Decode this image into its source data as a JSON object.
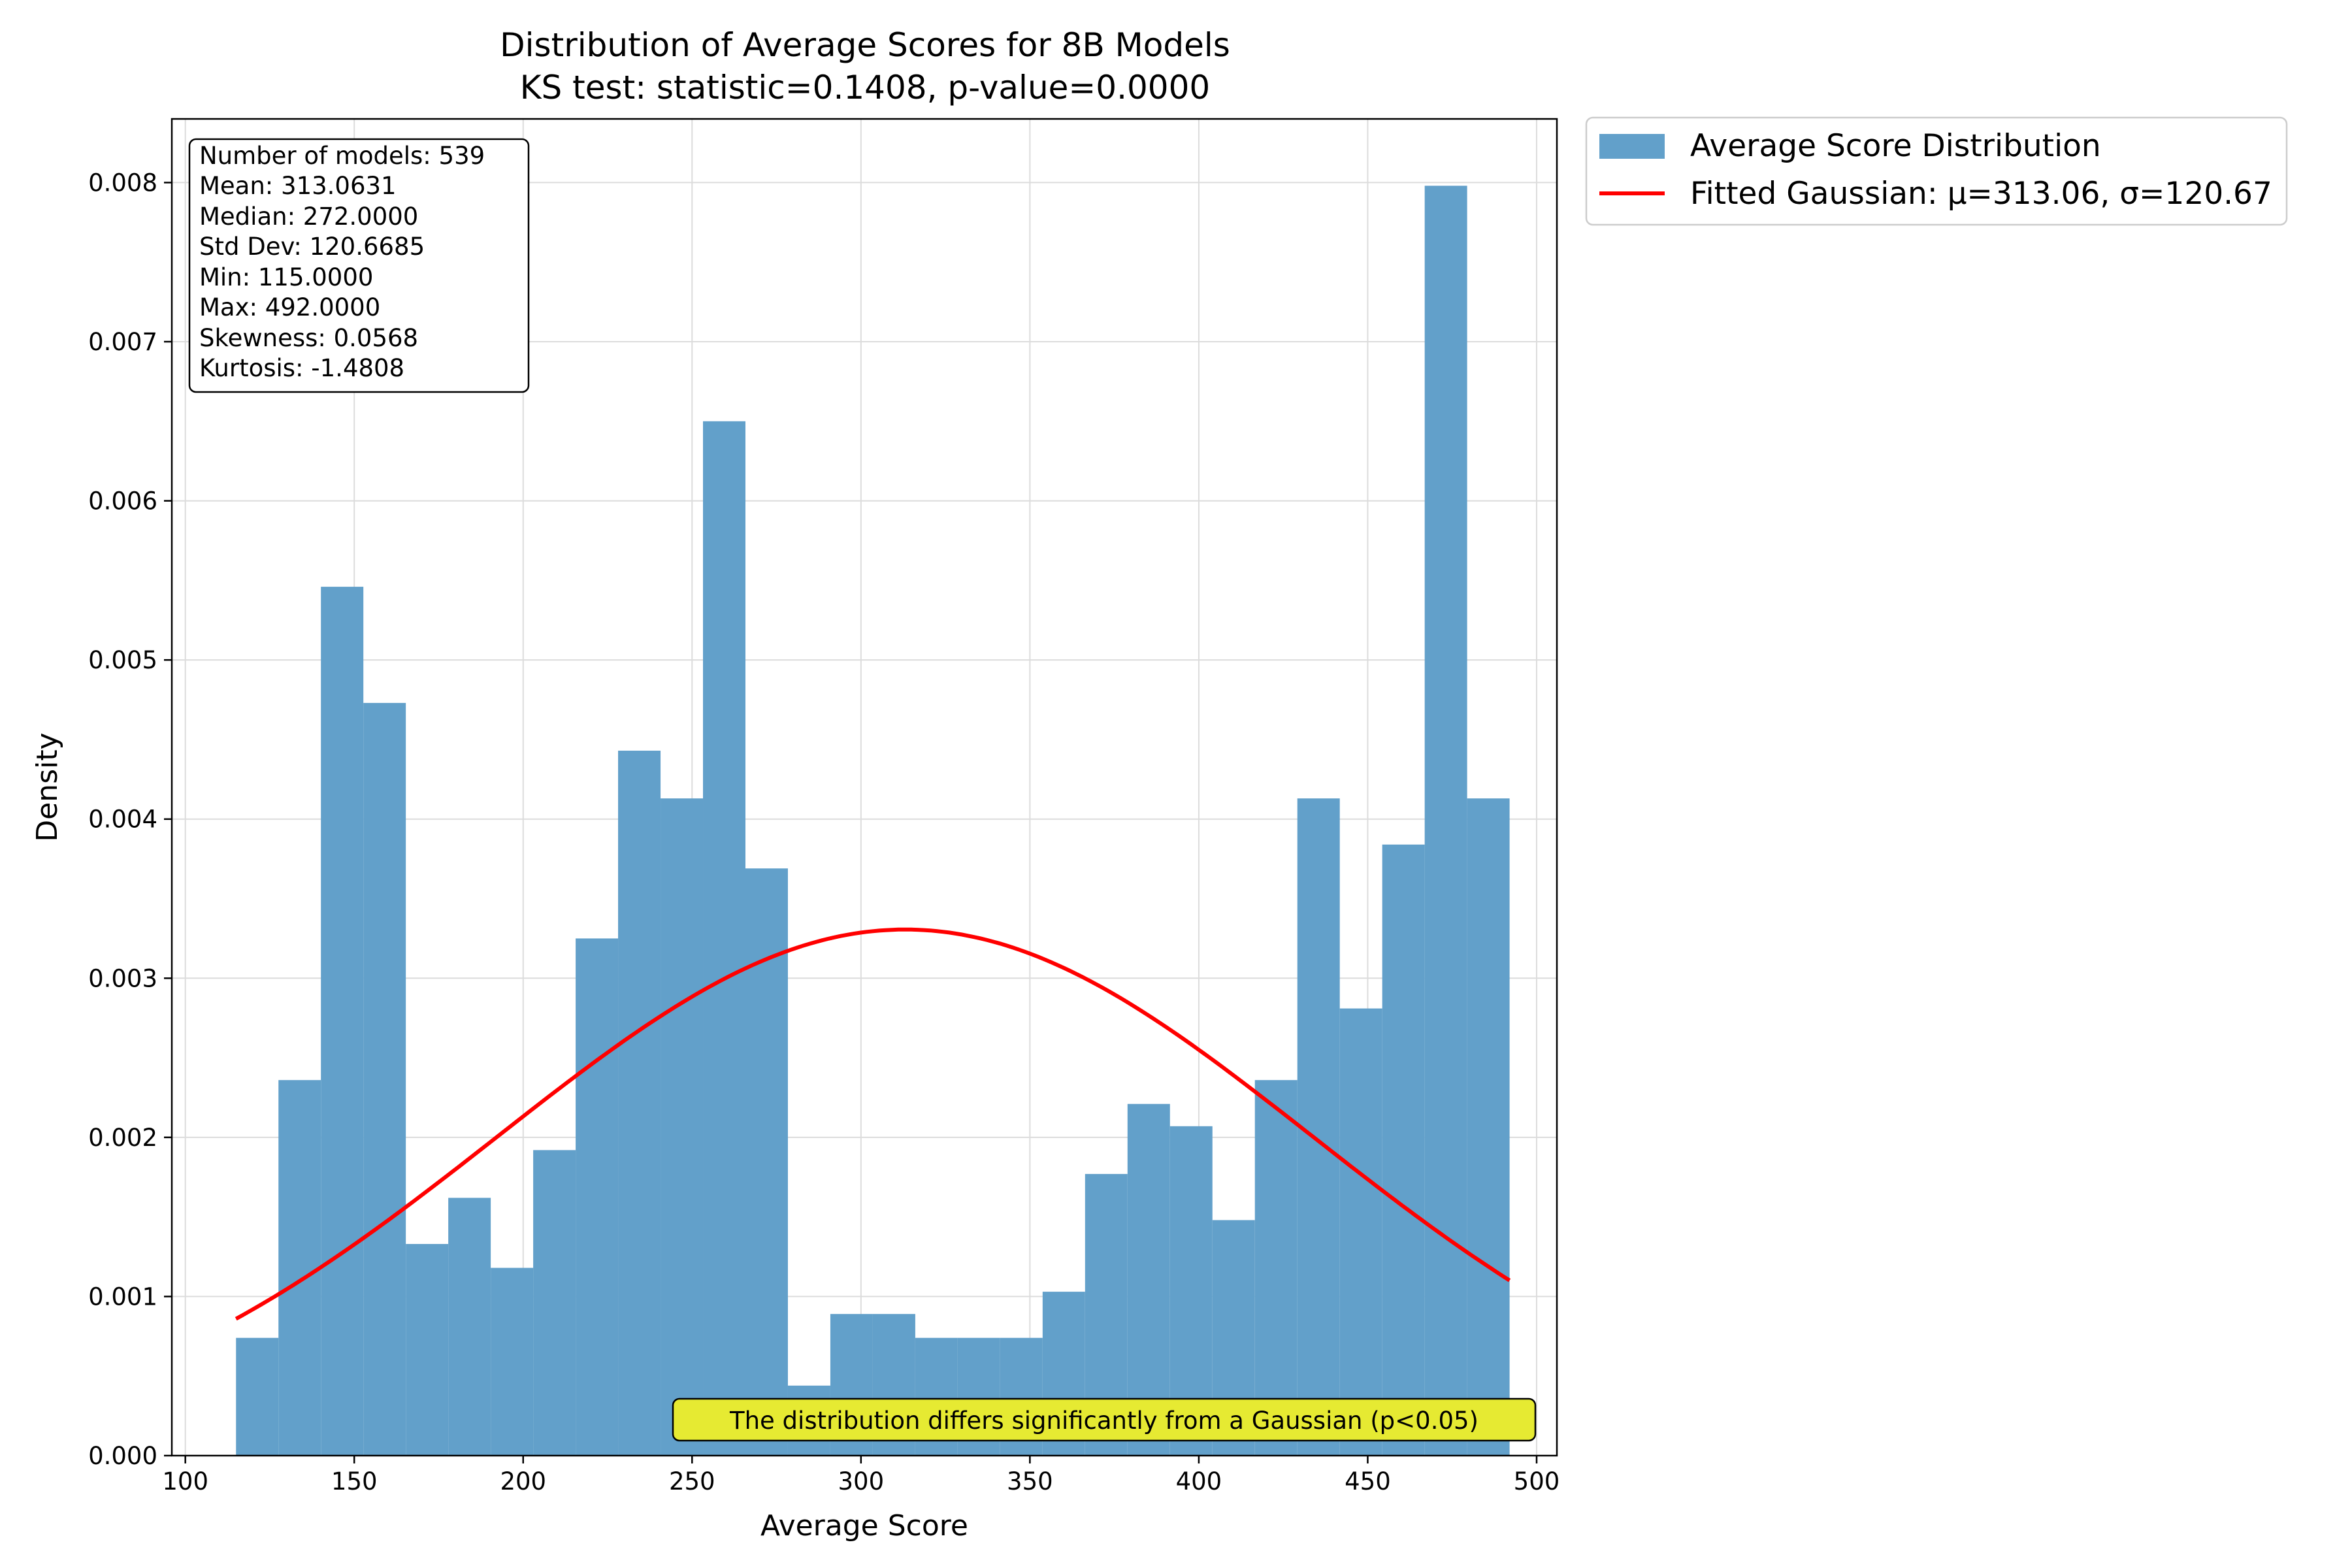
{
  "chart_data": {
    "type": "bar",
    "subtype": "histogram",
    "title": "Distribution of Average Scores for 8B Models",
    "subtitle": "KS test: statistic=0.1408, p-value=0.0000",
    "xlabel": "Average Score",
    "ylabel": "Density",
    "xlim": [
      96,
      506
    ],
    "ylim": [
      0,
      0.0084
    ],
    "x_ticks": [
      100,
      150,
      200,
      250,
      300,
      350,
      400,
      450,
      500
    ],
    "y_ticks": [
      0.0,
      0.001,
      0.002,
      0.003,
      0.004,
      0.005,
      0.006,
      0.007,
      0.008
    ],
    "y_tick_labels": [
      "0.000",
      "0.001",
      "0.002",
      "0.003",
      "0.004",
      "0.005",
      "0.006",
      "0.007",
      "0.008"
    ],
    "grid": true,
    "bin_edges": [
      115,
      127.567,
      140.133,
      152.7,
      165.267,
      177.833,
      190.4,
      202.967,
      215.533,
      228.1,
      240.667,
      253.233,
      265.8,
      278.367,
      290.933,
      303.5,
      316.067,
      328.633,
      341.2,
      353.767,
      366.333,
      378.9,
      391.467,
      404.033,
      416.6,
      429.167,
      441.733,
      454.3,
      466.867,
      479.433,
      492
    ],
    "series": [
      {
        "name": "Average Score Distribution",
        "type": "histogram",
        "color": "#62a0ca",
        "values": [
          0.00074,
          0.00236,
          0.00546,
          0.00473,
          0.00133,
          0.00162,
          0.00118,
          0.00192,
          0.00325,
          0.00443,
          0.00413,
          0.0065,
          0.00369,
          0.00044,
          0.00089,
          0.00089,
          0.00074,
          0.00074,
          0.00074,
          0.00103,
          0.00177,
          0.00221,
          0.00207,
          0.00148,
          0.00236,
          0.00413,
          0.00281,
          0.00384,
          0.00798,
          0.00413
        ]
      },
      {
        "name": "Fitted Gaussian: μ=313.06, σ=120.67",
        "type": "line",
        "color": "#ff0000",
        "mu": 313.0631,
        "sigma": 120.6685,
        "x_range": [
          115,
          492
        ]
      }
    ],
    "legend_position": "outside-top-right",
    "stats_box": [
      "Number of models: 539",
      "Mean: 313.0631",
      "Median: 272.0000",
      "Std Dev: 120.6685",
      "Min: 115.0000",
      "Max: 492.0000",
      "Skewness: 0.0568",
      "Kurtosis: -1.4808"
    ],
    "annotation": "The distribution differs significantly from a Gaussian (p<0.05)",
    "annotation_color": "#e6ea32"
  }
}
